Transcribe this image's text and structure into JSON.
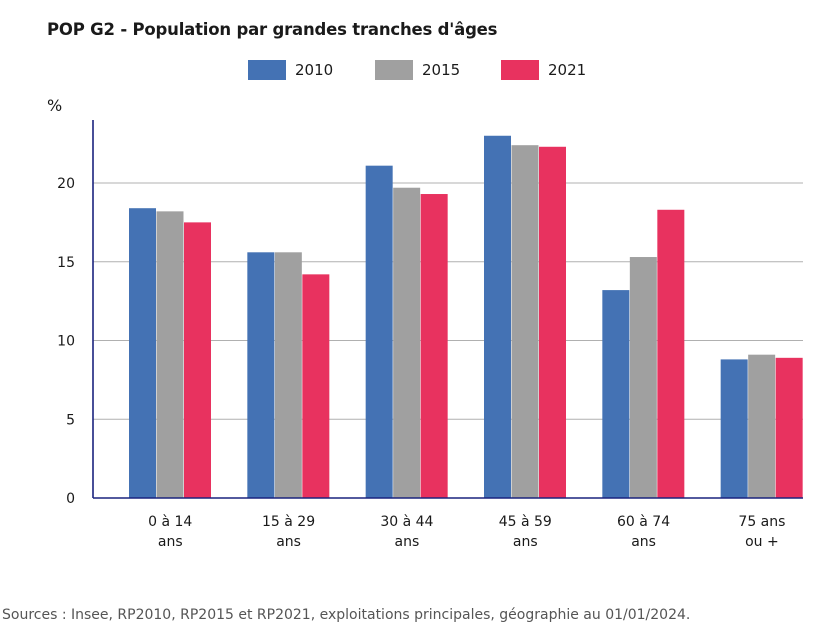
{
  "chart_data": {
    "type": "bar",
    "title": "POP G2 - Population par grandes tranches d'âges",
    "ylabel": "%",
    "xlabel": "",
    "ylim": [
      0,
      24
    ],
    "yticks": [
      0,
      5,
      10,
      15,
      20
    ],
    "grid": true,
    "legend_position": "top-center",
    "categories": [
      [
        "0 à 14",
        "ans"
      ],
      [
        "15 à 29",
        "ans"
      ],
      [
        "30 à 44",
        "ans"
      ],
      [
        "45 à 59",
        "ans"
      ],
      [
        "60 à 74",
        "ans"
      ],
      [
        "75 ans",
        "ou +"
      ]
    ],
    "series": [
      {
        "name": "2010",
        "color": "#4472b4",
        "values": [
          18.4,
          15.6,
          21.1,
          23.0,
          13.2,
          8.8
        ]
      },
      {
        "name": "2015",
        "color": "#a0a0a0",
        "values": [
          18.2,
          15.6,
          19.7,
          22.4,
          15.3,
          9.1
        ]
      },
      {
        "name": "2021",
        "color": "#e8325f",
        "values": [
          17.5,
          14.2,
          19.3,
          22.3,
          18.3,
          8.9
        ]
      }
    ],
    "source": "Sources : Insee, RP2010, RP2015 et RP2021, exploitations principales, géographie au 01/01/2024."
  }
}
